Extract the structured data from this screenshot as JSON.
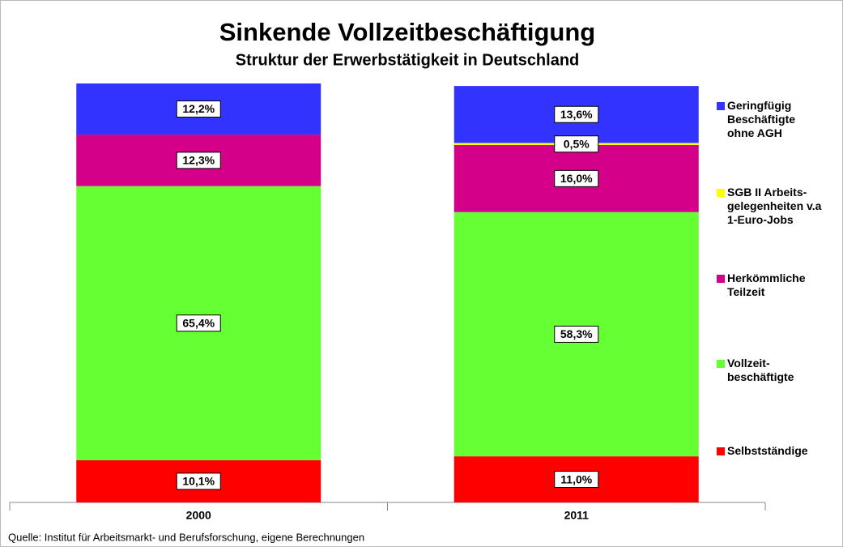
{
  "chart_data": {
    "type": "stacked_bar",
    "title": "Sinkende Vollzeitbeschäftigung",
    "subtitle": "Struktur der Erwerbstätigkeit in Deutschland",
    "source": "Quelle: Institut für Arbeitsmarkt- und Berufsforschung, eigene Berechnungen",
    "categories": [
      "2000",
      "2011"
    ],
    "ylim": [
      0,
      100
    ],
    "series": [
      {
        "name": "Selbstständige",
        "color": "#ff0000",
        "values": [
          10.1,
          11.0
        ],
        "value_labels": [
          "10,1%",
          "11,0%"
        ]
      },
      {
        "name": "Vollzeit-\nbeschäftigte",
        "color": "#66ff33",
        "values": [
          65.4,
          58.3
        ],
        "value_labels": [
          "65,4%",
          "58,3%"
        ]
      },
      {
        "name": "Herkömmliche\nTeilzeit",
        "color": "#d4008a",
        "values": [
          12.3,
          16.0
        ],
        "value_labels": [
          "12,3%",
          "16,0%"
        ]
      },
      {
        "name": "SGB II Arbeits-\ngelegenheiten v.a\n1-Euro-Jobs",
        "color": "#ffff00",
        "values": [
          null,
          0.5
        ],
        "value_labels": [
          null,
          "0,5%"
        ]
      },
      {
        "name": "Geringfügig\nBeschäftigte\nohne AGH",
        "color": "#3333ff",
        "values": [
          12.2,
          13.6
        ],
        "value_labels": [
          "12,2%",
          "13,6%"
        ]
      }
    ]
  }
}
